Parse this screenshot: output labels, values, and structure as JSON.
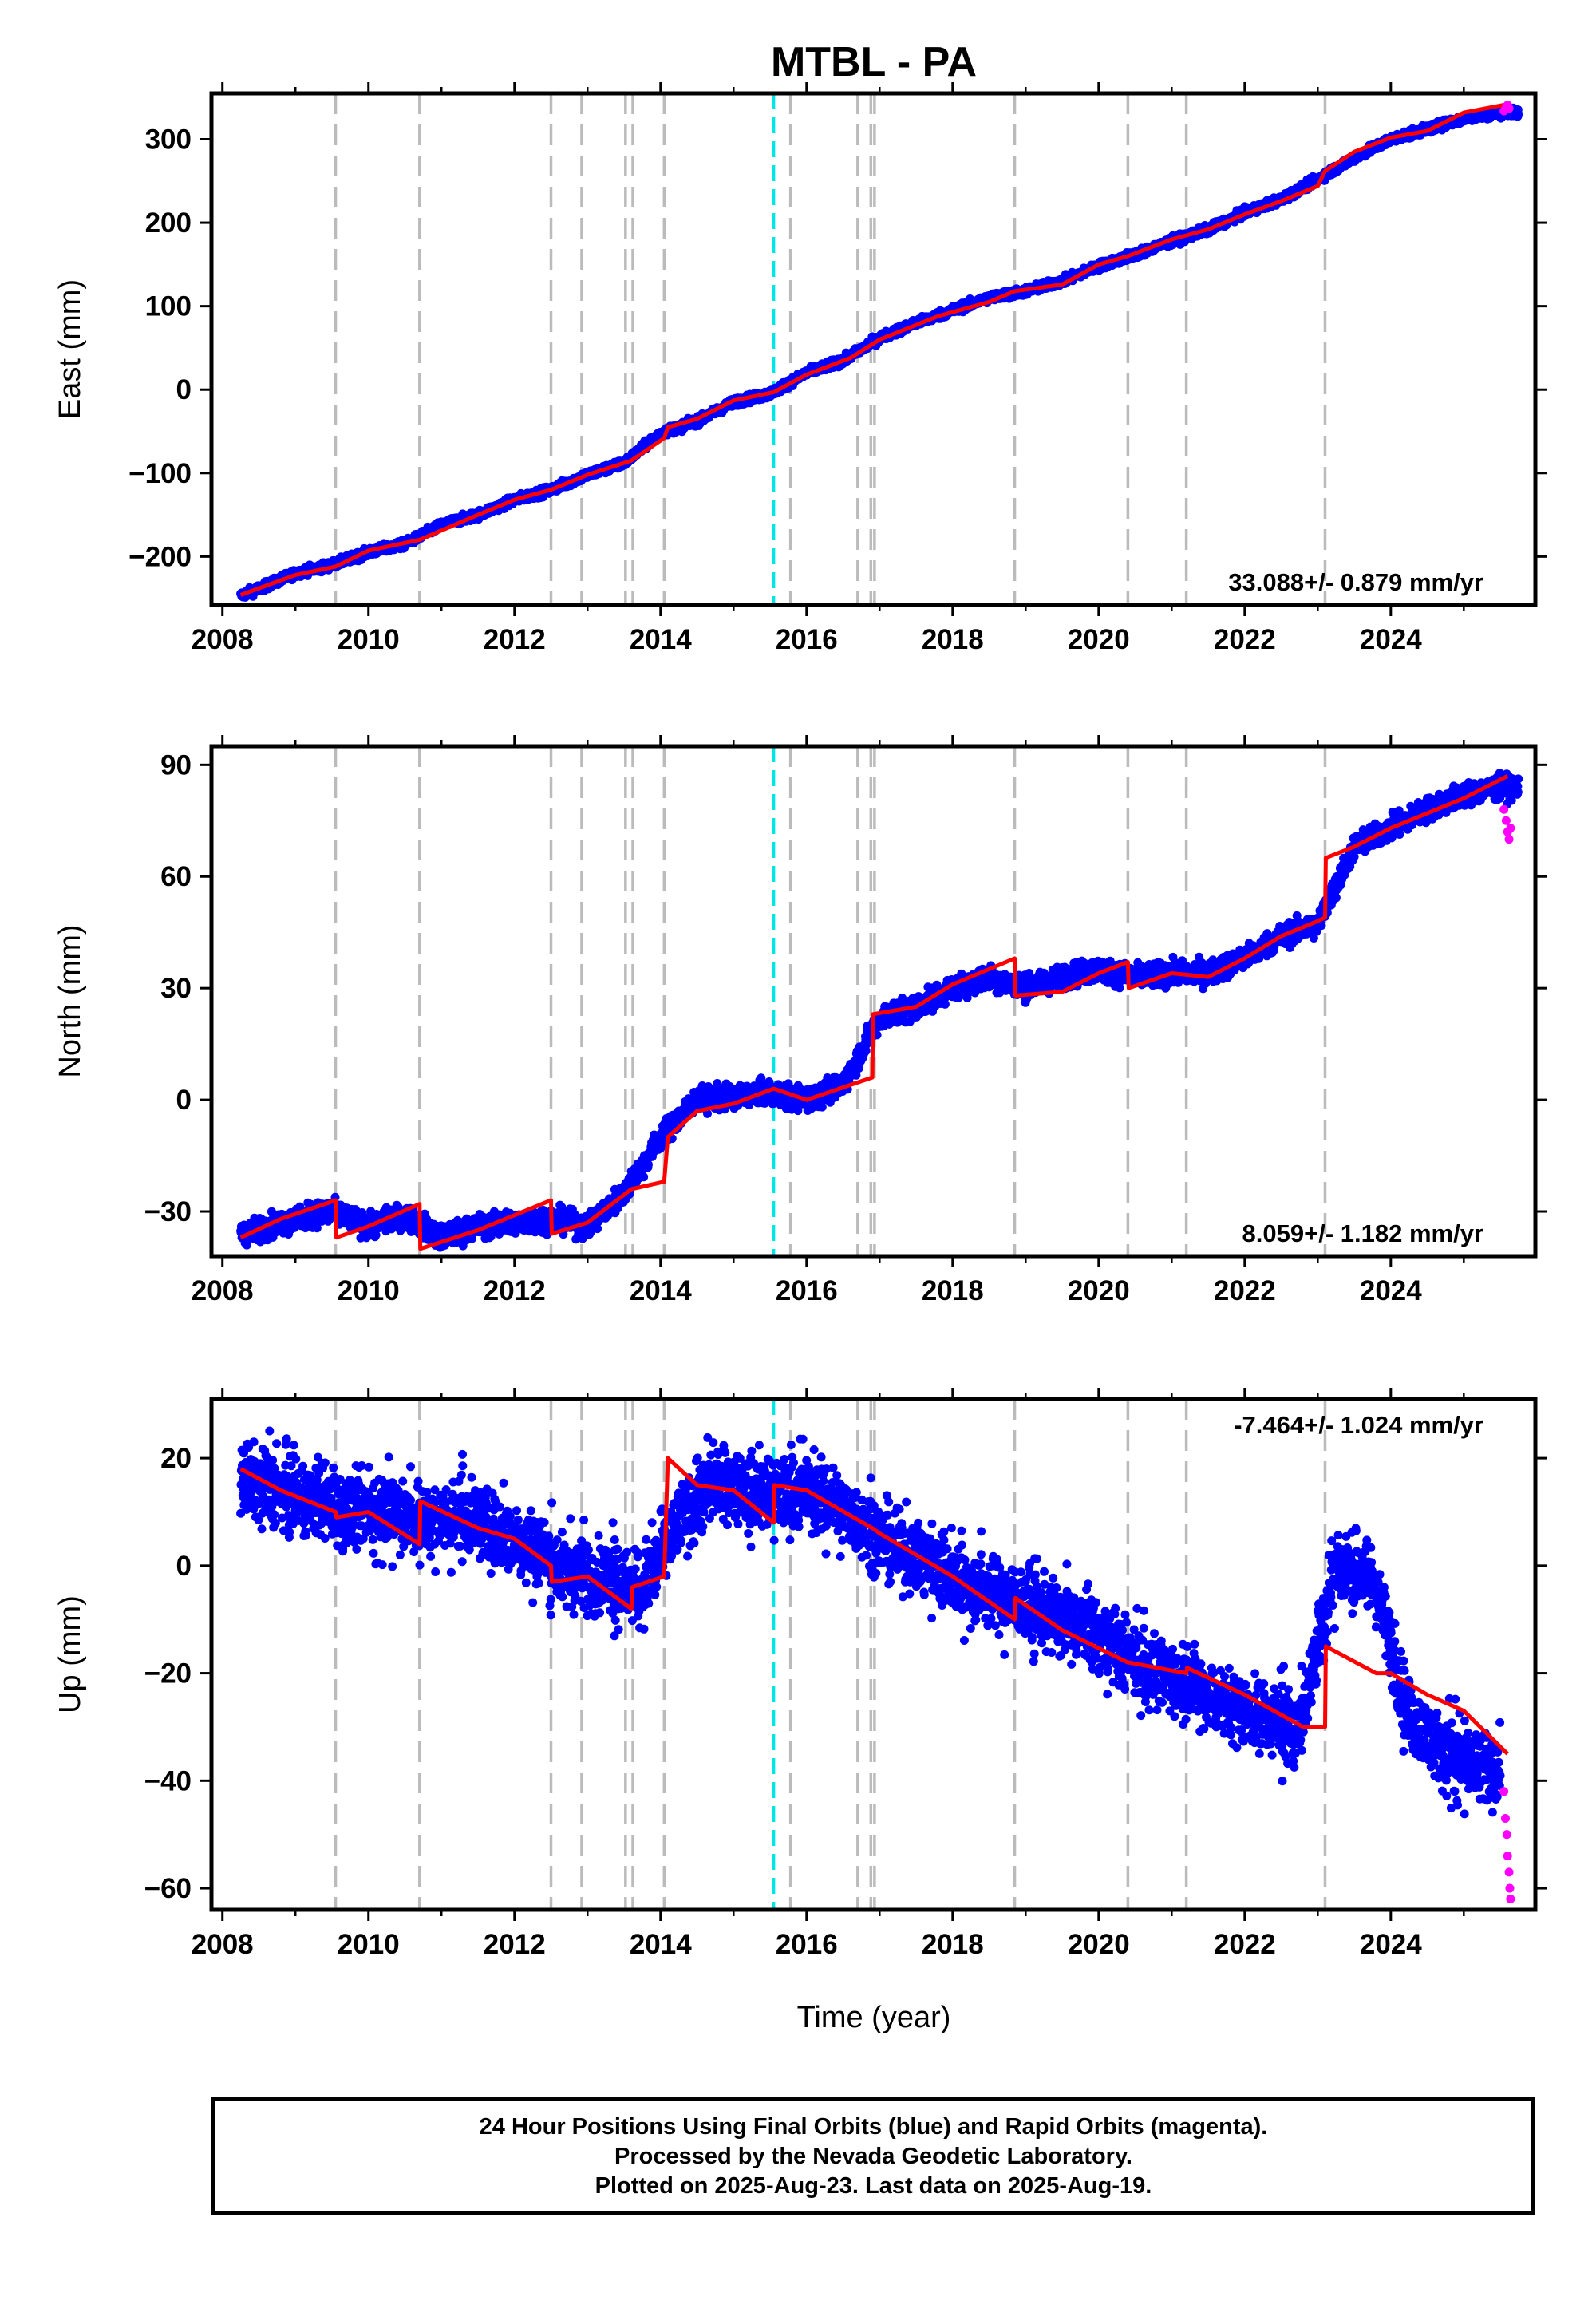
{
  "figure": {
    "title": "MTBL - PA",
    "xlabel": "Time (year)",
    "caption": [
      "24 Hour Positions Using Final Orbits (blue) and Rapid Orbits (magenta).",
      "Processed by the Nevada Geodetic Laboratory.",
      "Plotted on 2025-Aug-23. Last data on 2025-Aug-19."
    ]
  },
  "colors": {
    "final_orbits": "#0000ff",
    "rapid_orbits": "#ff00ff",
    "model_fit": "#ff0000",
    "gray_markers": "#bbbbbb",
    "cyan_marker": "#00e5e5"
  },
  "chart_data": [
    {
      "type": "scatter",
      "component": "East",
      "ylabel": "East (mm)",
      "xlim": [
        2007.85,
        2025.98
      ],
      "ylim": [
        -258,
        355
      ],
      "xticks": [
        2008,
        2010,
        2012,
        2014,
        2016,
        2018,
        2020,
        2022,
        2024
      ],
      "yticks": [
        -200,
        -100,
        0,
        100,
        200,
        300
      ],
      "ytick_labels": [
        "−200",
        "−100",
        "0",
        "100",
        "200",
        "300"
      ],
      "rate_text": "33.088+/- 0.879 mm/yr",
      "rate_position": "bottom-right",
      "grid": false,
      "series": [
        {
          "name": "Final Orbits (blue)",
          "x": [
            2008.25,
            2008.6,
            2009.0,
            2009.5,
            2010.0,
            2010.5,
            2011.0,
            2011.5,
            2012.0,
            2012.5,
            2013.0,
            2013.5,
            2014.0,
            2014.5,
            2015.0,
            2015.5,
            2016.0,
            2016.5,
            2017.0,
            2017.5,
            2018.0,
            2018.5,
            2019.0,
            2019.5,
            2020.0,
            2020.5,
            2021.0,
            2021.5,
            2022.0,
            2022.5,
            2023.0,
            2023.5,
            2024.0,
            2024.5,
            2025.0,
            2025.5
          ],
          "y": [
            -247,
            -235,
            -220,
            -210,
            -195,
            -185,
            -162,
            -150,
            -132,
            -120,
            -102,
            -88,
            -52,
            -38,
            -15,
            -5,
            20,
            35,
            62,
            80,
            95,
            110,
            118,
            130,
            148,
            162,
            178,
            192,
            212,
            228,
            252,
            278,
            300,
            312,
            325,
            332
          ]
        },
        {
          "name": "Rapid Orbits (magenta)",
          "x": [
            2025.55,
            2025.58,
            2025.6,
            2025.62
          ],
          "y": [
            334,
            338,
            341,
            337
          ]
        },
        {
          "name": "Model fit",
          "x": [
            2008.25,
            2009.0,
            2009.55,
            2010.0,
            2010.7,
            2011.5,
            2012.0,
            2012.5,
            2013.0,
            2013.6,
            2014.05,
            2014.1,
            2014.5,
            2015.0,
            2015.55,
            2016.0,
            2016.6,
            2017.0,
            2017.8,
            2018.5,
            2018.85,
            2019.5,
            2020.0,
            2020.4,
            2021.0,
            2021.5,
            2022.0,
            2022.5,
            2023.0,
            2023.1,
            2023.5,
            2024.0,
            2024.5,
            2025.0,
            2025.6
          ],
          "y": [
            -246,
            -222,
            -212,
            -193,
            -180,
            -150,
            -132,
            -120,
            -102,
            -85,
            -58,
            -45,
            -35,
            -13,
            -3,
            18,
            38,
            60,
            88,
            105,
            118,
            126,
            150,
            160,
            180,
            192,
            210,
            226,
            244,
            262,
            285,
            302,
            310,
            332,
            342
          ]
        }
      ]
    },
    {
      "type": "scatter",
      "component": "North",
      "ylabel": "North (mm)",
      "xlim": [
        2007.85,
        2025.98
      ],
      "ylim": [
        -42,
        95
      ],
      "xticks": [
        2008,
        2010,
        2012,
        2014,
        2016,
        2018,
        2020,
        2022,
        2024
      ],
      "yticks": [
        -30,
        0,
        30,
        60,
        90
      ],
      "ytick_labels": [
        "−30",
        "0",
        "30",
        "60",
        "90"
      ],
      "rate_text": "8.059+/- 1.182 mm/yr",
      "rate_position": "bottom-right",
      "grid": false,
      "series": [
        {
          "name": "Final Orbits (blue)",
          "x": [
            2008.25,
            2009.0,
            2009.5,
            2010.0,
            2010.5,
            2011.0,
            2011.5,
            2012.0,
            2012.5,
            2013.0,
            2013.5,
            2014.0,
            2014.5,
            2015.0,
            2015.5,
            2016.0,
            2016.5,
            2017.0,
            2017.5,
            2018.0,
            2018.5,
            2019.0,
            2019.5,
            2020.0,
            2020.5,
            2021.0,
            2021.5,
            2022.0,
            2022.5,
            2023.0,
            2023.5,
            2024.0,
            2024.5,
            2025.0,
            2025.5
          ],
          "y": [
            -36,
            -32,
            -30,
            -34,
            -31,
            -37,
            -34,
            -33,
            -32,
            -34,
            -25,
            -10,
            0,
            1,
            2,
            0,
            4,
            22,
            25,
            30,
            33,
            30,
            33,
            35,
            33,
            34,
            34,
            38,
            44,
            47,
            68,
            73,
            78,
            82,
            84
          ]
        },
        {
          "name": "Rapid Orbits (magenta)",
          "x": [
            2025.55,
            2025.58,
            2025.6,
            2025.62,
            2025.64
          ],
          "y": [
            78,
            75,
            72,
            70,
            73
          ]
        },
        {
          "name": "Model fit",
          "x": [
            2008.25,
            2008.8,
            2009.55,
            2009.56,
            2010.0,
            2010.7,
            2010.71,
            2011.5,
            2012.0,
            2012.5,
            2012.51,
            2013.0,
            2013.6,
            2014.05,
            2014.1,
            2014.5,
            2015.0,
            2015.55,
            2016.0,
            2016.6,
            2016.9,
            2016.91,
            2017.5,
            2018.0,
            2018.85,
            2018.86,
            2019.5,
            2020.0,
            2020.4,
            2020.41,
            2021.0,
            2021.5,
            2022.0,
            2022.5,
            2023.0,
            2023.1,
            2023.11,
            2023.5,
            2024.0,
            2024.5,
            2025.0,
            2025.6
          ],
          "y": [
            -37,
            -32,
            -27,
            -37,
            -34,
            -28,
            -40,
            -35,
            -31,
            -27,
            -36,
            -33,
            -24,
            -22,
            -10,
            -3,
            -1,
            3,
            0,
            4,
            6,
            23,
            25,
            31,
            38,
            28,
            29,
            34,
            37,
            30,
            34,
            33,
            38,
            44,
            48,
            49,
            65,
            68,
            73,
            77,
            81,
            87
          ]
        }
      ]
    },
    {
      "type": "scatter",
      "component": "Up",
      "ylabel": "Up (mm)",
      "xlim": [
        2007.85,
        2025.98
      ],
      "ylim": [
        -64,
        31
      ],
      "xticks": [
        2008,
        2010,
        2012,
        2014,
        2016,
        2018,
        2020,
        2022,
        2024
      ],
      "yticks": [
        -60,
        -40,
        -20,
        0,
        20
      ],
      "ytick_labels": [
        "−60",
        "−40",
        "−20",
        "0",
        "20"
      ],
      "rate_text": "-7.464+/- 1.024 mm/yr",
      "rate_position": "top-right",
      "grid": false,
      "series": [
        {
          "name": "Final Orbits (blue)",
          "x": [
            2008.25,
            2008.75,
            2009.25,
            2009.75,
            2010.25,
            2010.75,
            2011.25,
            2011.75,
            2012.25,
            2012.75,
            2013.25,
            2013.75,
            2014.25,
            2014.75,
            2015.25,
            2015.75,
            2016.25,
            2016.75,
            2017.25,
            2017.75,
            2018.25,
            2018.75,
            2019.25,
            2019.75,
            2020.25,
            2020.75,
            2021.25,
            2021.75,
            2022.25,
            2022.75,
            2023.25,
            2023.75,
            2024.25,
            2024.75,
            2025.25
          ],
          "y": [
            16,
            14,
            12,
            10,
            11,
            8,
            10,
            6,
            4,
            -2,
            -2,
            -5,
            8,
            16,
            14,
            13,
            13,
            8,
            3,
            0,
            -4,
            -6,
            -9,
            -11,
            -15,
            -20,
            -22,
            -26,
            -28,
            -30,
            0,
            -2,
            -28,
            -35,
            -38
          ]
        },
        {
          "name": "Rapid Orbits (magenta)",
          "x": [
            2025.55,
            2025.57,
            2025.59,
            2025.6,
            2025.62,
            2025.63,
            2025.64
          ],
          "y": [
            -42,
            -47,
            -50,
            -54,
            -57,
            -60,
            -62
          ]
        },
        {
          "name": "Model fit",
          "x": [
            2008.25,
            2008.8,
            2009.55,
            2009.56,
            2010.0,
            2010.7,
            2010.71,
            2011.5,
            2012.0,
            2012.5,
            2012.51,
            2013.0,
            2013.6,
            2013.61,
            2014.05,
            2014.1,
            2014.5,
            2015.0,
            2015.55,
            2015.56,
            2016.0,
            2016.9,
            2017.0,
            2018.0,
            2018.85,
            2018.86,
            2019.5,
            2020.4,
            2020.41,
            2021.2,
            2021.21,
            2022.0,
            2022.8,
            2023.1,
            2023.11,
            2023.8,
            2024.0,
            2024.5,
            2025.0,
            2025.6
          ],
          "y": [
            18,
            14,
            10,
            9,
            10,
            4,
            12,
            7,
            5,
            0,
            -3,
            -2,
            -8,
            -4,
            -2,
            20,
            15,
            14,
            8,
            15,
            14,
            7,
            6,
            -2,
            -10,
            -6,
            -12,
            -18,
            -18,
            -20,
            -19,
            -24,
            -30,
            -30,
            -15,
            -20,
            -20,
            -24,
            -27,
            -35
          ]
        }
      ]
    }
  ],
  "event_markers": {
    "gray": [
      2009.55,
      2010.7,
      2012.5,
      2012.92,
      2013.52,
      2013.62,
      2014.05,
      2015.78,
      2016.7,
      2016.88,
      2016.93,
      2018.85,
      2020.4,
      2021.2,
      2023.1
    ],
    "cyan": [
      2015.55
    ]
  }
}
